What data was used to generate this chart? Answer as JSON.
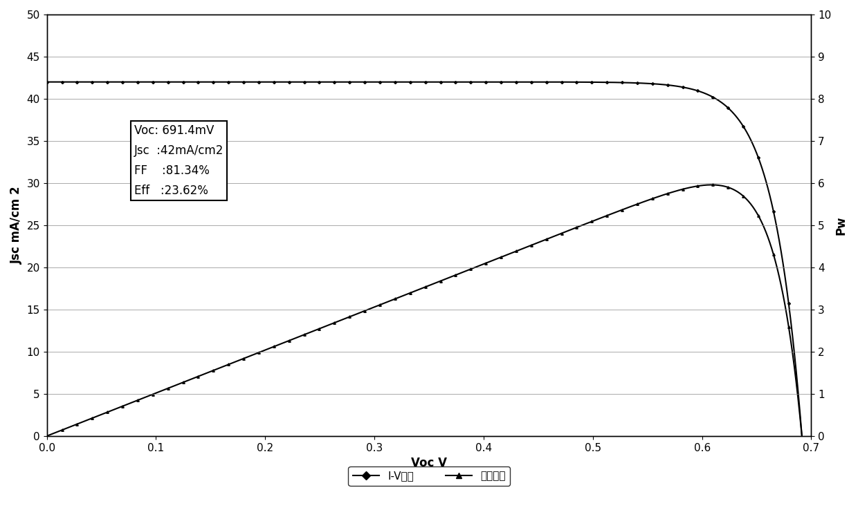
{
  "Voc": 0.6914,
  "Jsc": 42.0,
  "FF": 81.34,
  "Eff": 23.62,
  "xlim": [
    0,
    0.7
  ],
  "ylim_left": [
    0,
    50
  ],
  "ylim_right": [
    0,
    10
  ],
  "xlabel": "Voc V",
  "ylabel_left": "Jsc mA/cm 2",
  "ylabel_right": "Pw",
  "xticks": [
    0,
    0.1,
    0.2,
    0.3,
    0.4,
    0.5,
    0.6,
    0.7
  ],
  "yticks_left": [
    0,
    5,
    10,
    15,
    20,
    25,
    30,
    35,
    40,
    45,
    50
  ],
  "yticks_right": [
    0,
    1,
    2,
    3,
    4,
    5,
    6,
    7,
    8,
    9,
    10
  ],
  "legend_iv": "I-V曲线",
  "legend_pw": "功率曲线",
  "annotation": "Voc: 691.4mV\nJsc  :42mA/cm2\nFF    :81.34%\nEff   :23.62%",
  "line_color": "#000000",
  "background_color": "#ffffff",
  "grid_color": "#000000",
  "title_fontsize": 12,
  "axis_fontsize": 12,
  "tick_fontsize": 11,
  "legend_fontsize": 11
}
